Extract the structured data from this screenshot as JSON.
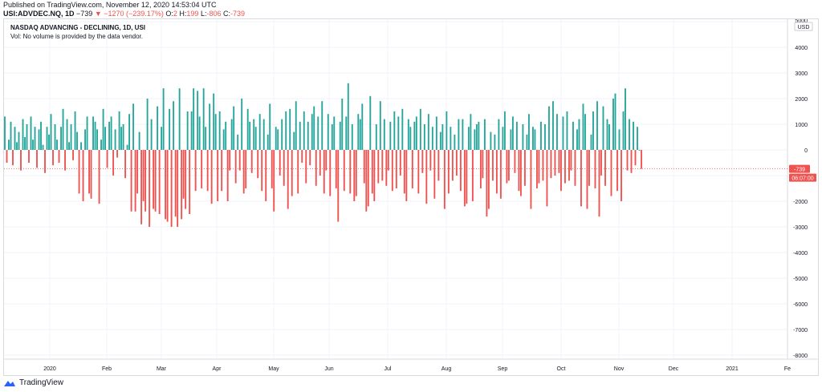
{
  "header": {
    "published": "Published on TradingView.com, November 12, 2020 14:53:04 UTC",
    "symbol": "USI:ADVDEC.NQ, 1D",
    "price": "−739",
    "change": "−1270 (−239.17%)",
    "o_label": "O:",
    "o_value": "2",
    "h_label": "H:",
    "h_value": "199",
    "l_label": "L:",
    "l_value": "-806",
    "c_label": "C:",
    "c_value": "-739"
  },
  "legend": {
    "title": "NASDAQ ADVANCING - DECLINING, 1D, USI",
    "volume_note": "Vol: No volume is provided by the data vendor."
  },
  "price_axis": {
    "currency": "USD",
    "last_value_label": "-739",
    "countdown_label": "06:07:00"
  },
  "footer": {
    "brand": "TradingView"
  },
  "colors": {
    "up": "#26a69a",
    "down": "#ef5350",
    "grid": "#f0f3fa",
    "axis_text": "#131722"
  },
  "chart_data": {
    "type": "bar",
    "title": "NASDAQ ADVANCING - DECLINING, 1D, USI",
    "ylabel": "USD",
    "ylim": [
      -8300,
      5000
    ],
    "y_ticks": [
      5000,
      4000,
      3000,
      2000,
      1000,
      0,
      -1000,
      -2000,
      -3000,
      -4000,
      -5000,
      -6000,
      -7000,
      -8000
    ],
    "x_ticks": [
      "2020",
      "Feb",
      "Mar",
      "Apr",
      "May",
      "Jun",
      "Jul",
      "Aug",
      "Sep",
      "Oct",
      "Nov",
      "Dec",
      "2021",
      "Fe"
    ],
    "last_value": -739,
    "grid": true,
    "series": [
      {
        "values": [
          1300,
          -500,
          400,
          1100,
          -600,
          900,
          300,
          700,
          -800,
          1200,
          500,
          1000,
          -500,
          1300,
          400,
          900,
          -700,
          800,
          1100,
          200,
          -900,
          900,
          600,
          1400,
          -600,
          1000,
          400,
          -500,
          900,
          1600,
          -800,
          1200,
          300,
          1000,
          -400,
          1500,
          700,
          -1700,
          300,
          -2000,
          800,
          1300,
          -1700,
          -1900,
          1300,
          1100,
          800,
          -2100,
          400,
          1600,
          900,
          -700,
          1100,
          1300,
          -1000,
          800,
          -300,
          1500,
          900,
          1000,
          -1100,
          200,
          1400,
          -2400,
          1800,
          -2400,
          -1700,
          700,
          -2900,
          -2000,
          -2400,
          2000,
          -3000,
          1200,
          -2300,
          -2400,
          1700,
          -2500,
          900,
          2400,
          -2700,
          -2800,
          1600,
          -3000,
          1900,
          -2600,
          -3000,
          2400,
          -2700,
          -1900,
          -2300,
          1500,
          -2500,
          1500,
          2400,
          -1600,
          2300,
          1300,
          -1500,
          2400,
          900,
          -1600,
          1800,
          -2100,
          2200,
          1400,
          -2000,
          1500,
          -1600,
          800,
          1100,
          -2000,
          -800,
          1200,
          1700,
          -1300,
          600,
          -800,
          2000,
          -1700,
          -1500,
          1600,
          1100,
          -900,
          1200,
          900,
          -1100,
          1400,
          -1600,
          1200,
          -2000,
          600,
          1800,
          -1500,
          -2400,
          900,
          800,
          -1000,
          1200,
          -1400,
          1500,
          -2300,
          1600,
          -1800,
          700,
          1900,
          -1700,
          1100,
          -500,
          1500,
          -1300,
          1100,
          -600,
          1400,
          1700,
          -1400,
          1300,
          -1000,
          1900,
          -1700,
          -800,
          1400,
          -1800,
          1000,
          1300,
          -1500,
          -2800,
          1100,
          2000,
          -1600,
          1300,
          2600,
          -1700,
          1000,
          -2000,
          -1800,
          1400,
          1200,
          1800,
          -1300,
          -2400,
          -2200,
          2100,
          -1700,
          -2000,
          1000,
          -1300,
          1900,
          -1200,
          1200,
          -1400,
          -800,
          1100,
          -1600,
          1500,
          -1500,
          1300,
          -1000,
          1600,
          -1700,
          -2000,
          1200,
          900,
          -1500,
          1100,
          1300,
          -1700,
          1600,
          -900,
          1000,
          -2100,
          1400,
          -800,
          900,
          -1900,
          1300,
          -1200,
          700,
          1000,
          -2300,
          1500,
          -1700,
          900,
          -1200,
          600,
          -1000,
          1200,
          -1600,
          1200,
          -2200,
          -2100,
          900,
          1400,
          -2000,
          800,
          1000,
          1100,
          -1500,
          -1100,
          1200,
          -2600,
          -2300,
          700,
          -1200,
          600,
          -1700,
          1200,
          -1900,
          900,
          1500,
          -1300,
          -1200,
          800,
          1300,
          -900,
          1100,
          -1600,
          -1800,
          1000,
          -1400,
          600,
          1400,
          -2300,
          900,
          800,
          -1500,
          -1300,
          1100,
          -1200,
          1000,
          -2200,
          1700,
          -1100,
          1900,
          -1000,
          1400,
          -900,
          -1600,
          1300,
          -1300,
          1500,
          -1200,
          -800,
          1100,
          -1400,
          800,
          1200,
          -2200,
          1800,
          1400,
          -2300,
          -1400,
          600,
          1500,
          -1500,
          1900,
          -2600,
          -1000,
          1700,
          -1400,
          1200,
          1000,
          -1800,
          2000,
          2200,
          -1600,
          800,
          -2000,
          1500,
          2400,
          -800,
          1200,
          -900,
          1100,
          -600,
          900,
          2,
          -739
        ]
      }
    ]
  }
}
